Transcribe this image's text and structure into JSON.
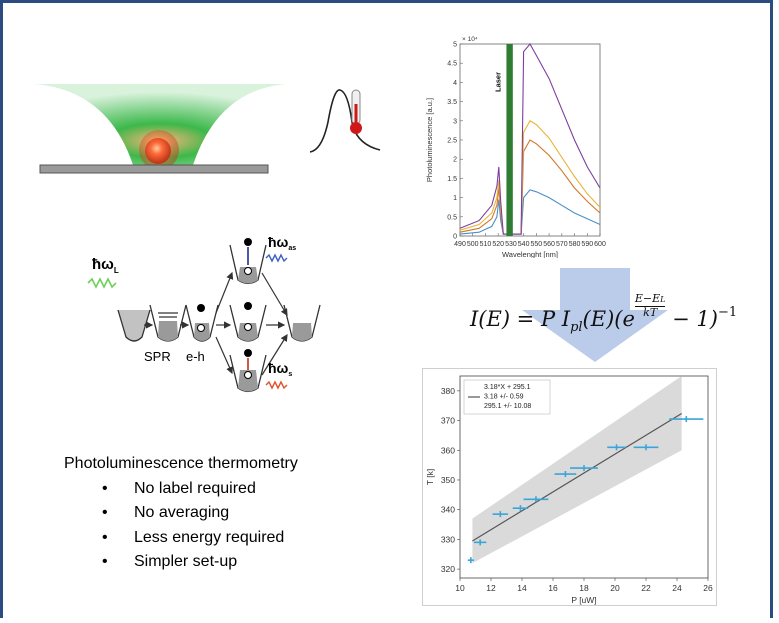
{
  "diagram": {
    "labels": {
      "spr": "SPR",
      "eh": "e-h",
      "omega_l": "ħω",
      "omega_l_sub": "L",
      "omega_as": "ħω",
      "omega_as_sub": "as",
      "omega_s": "ħω",
      "omega_s_sub": "s"
    }
  },
  "bullets": {
    "title": "Photoluminescence thermometry",
    "items": [
      "No label required",
      "No averaging",
      "Less energy required",
      "Simpler set-up"
    ]
  },
  "formula": {
    "lhs": "I(E) = P I",
    "sub": "pl",
    "mid": "(E)(e",
    "exp_num": "E−E",
    "exp_num_sub": "L",
    "exp_den": "kT",
    "tail": " − 1)",
    "power": "−1"
  },
  "chart_data": [
    {
      "type": "line",
      "xlabel": "Wavelenght [nm]",
      "ylabel": "Photoluminescence [a.u.]",
      "multiplier": "× 10⁴",
      "annotation": "Laser",
      "xlim": [
        490,
        600
      ],
      "ylim": [
        0,
        5
      ],
      "x_ticks": [
        490,
        500,
        510,
        520,
        530,
        540,
        550,
        560,
        570,
        580,
        590,
        600
      ],
      "y_ticks": [
        0,
        0.5,
        1,
        1.5,
        2,
        2.5,
        3,
        3.5,
        4,
        4.5,
        5
      ],
      "colors": {
        "laser": "#2e7d32"
      },
      "series": [
        {
          "color": "#4a90c8",
          "points": [
            [
              490,
              0.05
            ],
            [
              505,
              0.1
            ],
            [
              515,
              0.25
            ],
            [
              519,
              0.5
            ],
            [
              520.5,
              0.95
            ],
            [
              522,
              0.4
            ],
            [
              524,
              0.05
            ],
            [
              538,
              0.05
            ],
            [
              540,
              1.0
            ],
            [
              545,
              1.2
            ],
            [
              550,
              1.15
            ],
            [
              560,
              1.0
            ],
            [
              570,
              0.8
            ],
            [
              580,
              0.6
            ],
            [
              590,
              0.45
            ],
            [
              600,
              0.3
            ]
          ]
        },
        {
          "color": "#d4752a",
          "points": [
            [
              490,
              0.1
            ],
            [
              505,
              0.2
            ],
            [
              515,
              0.45
            ],
            [
              519,
              0.8
            ],
            [
              520.5,
              1.25
            ],
            [
              522,
              0.6
            ],
            [
              524,
              0.05
            ],
            [
              538,
              0.05
            ],
            [
              540,
              2.2
            ],
            [
              545,
              2.5
            ],
            [
              550,
              2.4
            ],
            [
              560,
              2.1
            ],
            [
              570,
              1.7
            ],
            [
              580,
              1.25
            ],
            [
              590,
              0.9
            ],
            [
              600,
              0.6
            ]
          ]
        },
        {
          "color": "#e8b53a",
          "points": [
            [
              490,
              0.15
            ],
            [
              505,
              0.3
            ],
            [
              515,
              0.6
            ],
            [
              519,
              1.0
            ],
            [
              520.5,
              1.45
            ],
            [
              522,
              0.75
            ],
            [
              524,
              0.05
            ],
            [
              538,
              0.05
            ],
            [
              540,
              2.7
            ],
            [
              545,
              3.0
            ],
            [
              550,
              2.9
            ],
            [
              560,
              2.55
            ],
            [
              570,
              2.05
            ],
            [
              580,
              1.55
            ],
            [
              590,
              1.1
            ],
            [
              600,
              0.75
            ]
          ]
        },
        {
          "color": "#7b3f9e",
          "points": [
            [
              490,
              0.2
            ],
            [
              505,
              0.4
            ],
            [
              515,
              0.8
            ],
            [
              519,
              1.3
            ],
            [
              520.5,
              1.8
            ],
            [
              522,
              0.9
            ],
            [
              524,
              0.05
            ],
            [
              538,
              0.05
            ],
            [
              540,
              4.8
            ],
            [
              545,
              5.0
            ],
            [
              550,
              4.7
            ],
            [
              560,
              4.1
            ],
            [
              570,
              3.3
            ],
            [
              580,
              2.5
            ],
            [
              590,
              1.8
            ],
            [
              600,
              1.25
            ]
          ]
        }
      ]
    },
    {
      "type": "scatter",
      "xlabel": "P [uW]",
      "ylabel": "T [k]",
      "xlim": [
        10,
        26
      ],
      "ylim": [
        317,
        385
      ],
      "x_ticks": [
        10,
        12,
        14,
        16,
        18,
        20,
        22,
        24,
        26
      ],
      "y_ticks": [
        320,
        330,
        340,
        350,
        360,
        370,
        380
      ],
      "legend": [
        "3.18*X + 295.1",
        "3.18 +/- 0.59",
        "295.1 +/- 10.08"
      ],
      "fit": {
        "slope": 3.18,
        "intercept": 295.1,
        "x": [
          10.8,
          24.3
        ]
      },
      "band": {
        "upper": [
          [
            10.8,
            337
          ],
          [
            24.3,
            385
          ]
        ],
        "lower": [
          [
            10.8,
            322
          ],
          [
            24.3,
            360
          ]
        ]
      },
      "colors": {
        "points": "#3aa5d8",
        "band": "#d3d3d3",
        "fit": "#555555"
      },
      "points": [
        {
          "x": 10.7,
          "y": 323,
          "xerr": 0.2
        },
        {
          "x": 11.3,
          "y": 329,
          "xerr": 0.4
        },
        {
          "x": 12.6,
          "y": 338.5,
          "xerr": 0.5
        },
        {
          "x": 13.9,
          "y": 340.5,
          "xerr": 0.5
        },
        {
          "x": 14.9,
          "y": 343.5,
          "xerr": 0.8
        },
        {
          "x": 16.8,
          "y": 352,
          "xerr": 0.7
        },
        {
          "x": 18.0,
          "y": 354,
          "xerr": 0.9
        },
        {
          "x": 20.1,
          "y": 361,
          "xerr": 0.6
        },
        {
          "x": 22.0,
          "y": 361,
          "xerr": 0.8
        },
        {
          "x": 24.6,
          "y": 370.5,
          "xerr": 1.1
        }
      ]
    }
  ]
}
